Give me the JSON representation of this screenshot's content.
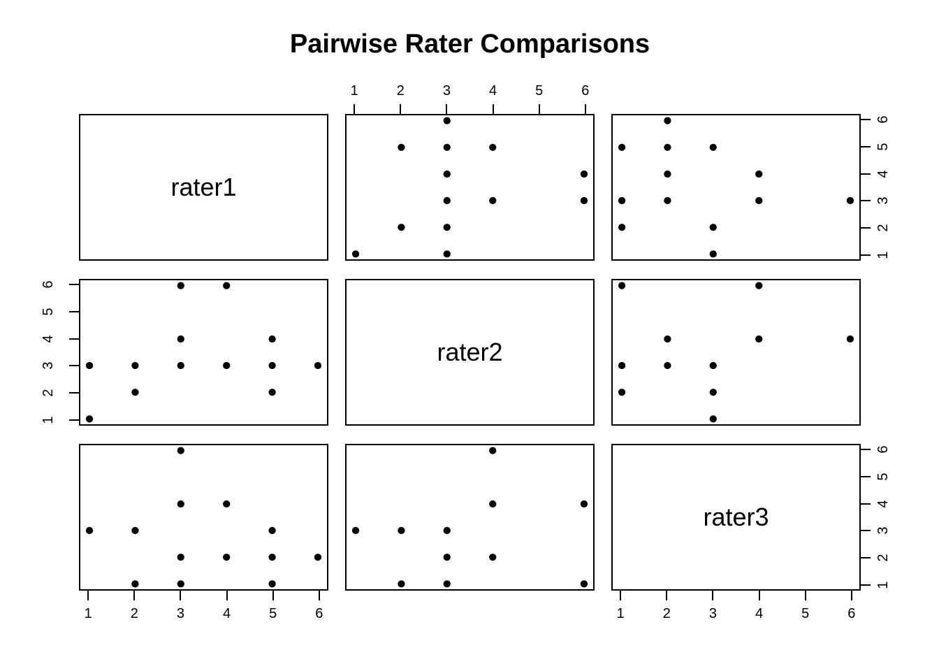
{
  "title": "Pairwise Rater Comparisons",
  "colors": {
    "foreground": "#000000",
    "background": "#ffffff",
    "point": "#000000"
  },
  "chart_data": {
    "type": "scatter",
    "subtype": "scatterplot-matrix",
    "title": "Pairwise Rater Comparisons",
    "variables": [
      "rater1",
      "rater2",
      "rater3"
    ],
    "axis_domain": [
      0.8,
      6.2
    ],
    "tick_values": [
      1,
      2,
      3,
      4,
      5,
      6
    ],
    "tick_labels": [
      "1",
      "2",
      "3",
      "4",
      "5",
      "6"
    ],
    "grid": false,
    "axes_layout": {
      "top_axis_cols": [
        2
      ],
      "bottom_axis_cols": [
        1,
        3
      ],
      "left_axis_rows": [
        2
      ],
      "right_axis_rows": [
        1,
        3
      ]
    },
    "panels": [
      {
        "row": 1,
        "col": 1,
        "type": "label",
        "label": "rater1"
      },
      {
        "row": 1,
        "col": 2,
        "type": "scatter",
        "x_var": "rater2",
        "y_var": "rater1",
        "points": [
          [
            3,
            6
          ],
          [
            2,
            5
          ],
          [
            3,
            5
          ],
          [
            4,
            5
          ],
          [
            3,
            4
          ],
          [
            6,
            4
          ],
          [
            3,
            3
          ],
          [
            4,
            3
          ],
          [
            6,
            3
          ],
          [
            2,
            2
          ],
          [
            3,
            2
          ],
          [
            1,
            1
          ],
          [
            3,
            1
          ]
        ]
      },
      {
        "row": 1,
        "col": 3,
        "type": "scatter",
        "x_var": "rater3",
        "y_var": "rater1",
        "points": [
          [
            2,
            6
          ],
          [
            1,
            5
          ],
          [
            2,
            5
          ],
          [
            3,
            5
          ],
          [
            2,
            4
          ],
          [
            4,
            4
          ],
          [
            1,
            3
          ],
          [
            2,
            3
          ],
          [
            4,
            3
          ],
          [
            6,
            3
          ],
          [
            1,
            2
          ],
          [
            3,
            2
          ],
          [
            3,
            1
          ]
        ]
      },
      {
        "row": 2,
        "col": 1,
        "type": "scatter",
        "x_var": "rater1",
        "y_var": "rater2",
        "points": [
          [
            3,
            6
          ],
          [
            4,
            6
          ],
          [
            3,
            4
          ],
          [
            5,
            4
          ],
          [
            1,
            3
          ],
          [
            2,
            3
          ],
          [
            3,
            3
          ],
          [
            4,
            3
          ],
          [
            5,
            3
          ],
          [
            6,
            3
          ],
          [
            2,
            2
          ],
          [
            5,
            2
          ],
          [
            1,
            1
          ]
        ]
      },
      {
        "row": 2,
        "col": 2,
        "type": "label",
        "label": "rater2"
      },
      {
        "row": 2,
        "col": 3,
        "type": "scatter",
        "x_var": "rater3",
        "y_var": "rater2",
        "points": [
          [
            1,
            6
          ],
          [
            4,
            6
          ],
          [
            2,
            4
          ],
          [
            4,
            4
          ],
          [
            6,
            4
          ],
          [
            1,
            3
          ],
          [
            2,
            3
          ],
          [
            3,
            3
          ],
          [
            1,
            2
          ],
          [
            3,
            2
          ],
          [
            3,
            1
          ]
        ]
      },
      {
        "row": 3,
        "col": 1,
        "type": "scatter",
        "x_var": "rater1",
        "y_var": "rater3",
        "points": [
          [
            3,
            6
          ],
          [
            3,
            4
          ],
          [
            4,
            4
          ],
          [
            1,
            3
          ],
          [
            2,
            3
          ],
          [
            5,
            3
          ],
          [
            3,
            2
          ],
          [
            4,
            2
          ],
          [
            5,
            2
          ],
          [
            6,
            2
          ],
          [
            2,
            1
          ],
          [
            3,
            1
          ],
          [
            5,
            1
          ]
        ]
      },
      {
        "row": 3,
        "col": 2,
        "type": "scatter",
        "x_var": "rater2",
        "y_var": "rater3",
        "points": [
          [
            4,
            6
          ],
          [
            4,
            4
          ],
          [
            6,
            4
          ],
          [
            1,
            3
          ],
          [
            2,
            3
          ],
          [
            3,
            3
          ],
          [
            3,
            2
          ],
          [
            4,
            2
          ],
          [
            2,
            1
          ],
          [
            3,
            1
          ],
          [
            6,
            1
          ]
        ]
      },
      {
        "row": 3,
        "col": 3,
        "type": "label",
        "label": "rater3"
      }
    ]
  }
}
